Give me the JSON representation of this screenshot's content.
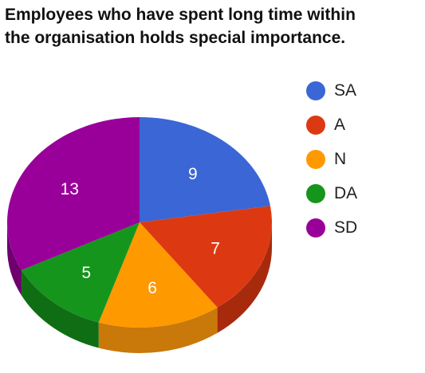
{
  "chart_data": {
    "type": "pie",
    "title_lines": [
      "Employees who have spent long time within",
      "the organisation holds special importance."
    ],
    "categories": [
      "SA",
      "A",
      "N",
      "DA",
      "SD"
    ],
    "values": [
      9,
      7,
      6,
      5,
      13
    ],
    "colors": [
      "#3b66d6",
      "#dc3912",
      "#ff9900",
      "#16951c",
      "#990099"
    ],
    "side_colors": [
      "#2b4da6",
      "#a82a0d",
      "#c9780a",
      "#0f6e14",
      "#6e006e"
    ],
    "legend_position": "right",
    "style": "3d"
  }
}
